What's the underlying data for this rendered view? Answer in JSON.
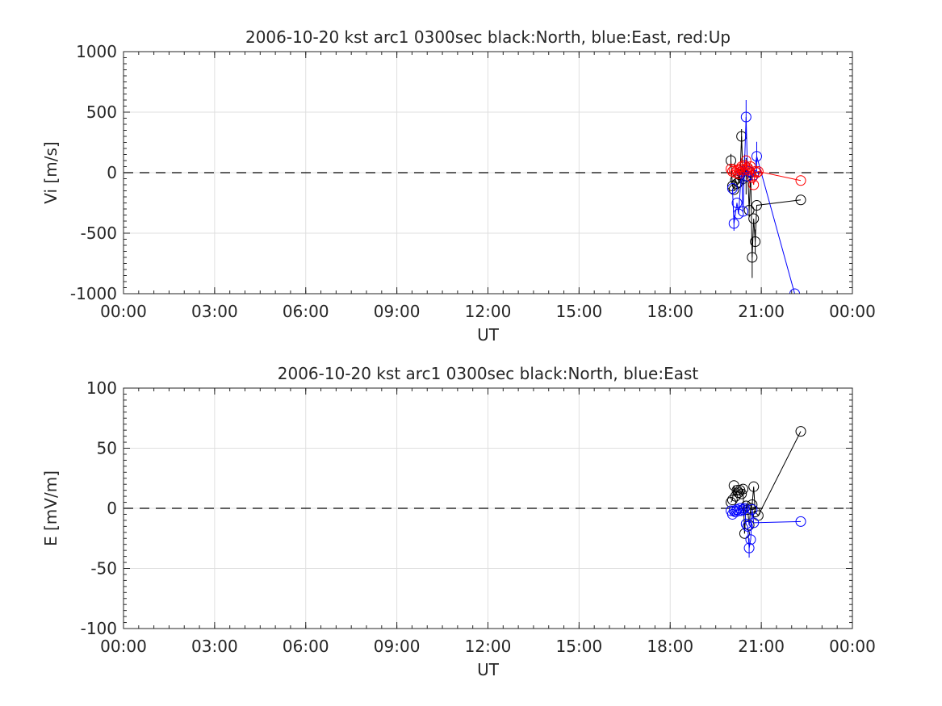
{
  "chart_data": [
    {
      "type": "line",
      "title": "2006-10-20 kst arc1 0300sec black:North, blue:East, red:Up",
      "xlabel": "UT",
      "ylabel": "Vi [m/s]",
      "xlim_hours": [
        0,
        24
      ],
      "ylim": [
        -1000,
        1000
      ],
      "x_tick_labels": [
        "00:00",
        "03:00",
        "06:00",
        "09:00",
        "12:00",
        "15:00",
        "18:00",
        "21:00",
        "00:00"
      ],
      "y_ticks": [
        -1000,
        -500,
        0,
        500,
        1000
      ],
      "grid": true,
      "zero_line": "dashed",
      "series": [
        {
          "name": "North",
          "color": "#000000",
          "points": [
            {
              "t": "20:00",
              "v": 100,
              "err": 55
            },
            {
              "t": "20:03",
              "v": -110
            },
            {
              "t": "20:06",
              "v": -140
            },
            {
              "t": "20:09",
              "v": -60
            },
            {
              "t": "20:12",
              "v": -90
            },
            {
              "t": "20:15",
              "v": -80
            },
            {
              "t": "20:18",
              "v": -20
            },
            {
              "t": "20:21",
              "v": 300,
              "err": 60
            },
            {
              "t": "20:24",
              "v": -50
            },
            {
              "t": "20:27",
              "v": 60,
              "err": 90
            },
            {
              "t": "20:30",
              "v": -30,
              "err": 150
            },
            {
              "t": "20:33",
              "v": 40
            },
            {
              "t": "20:36",
              "v": -310,
              "err": 60
            },
            {
              "t": "20:39",
              "v": 0
            },
            {
              "t": "20:42",
              "v": -700,
              "err": 170
            },
            {
              "t": "20:45",
              "v": -380
            },
            {
              "t": "20:48",
              "v": -570,
              "err": 100
            },
            {
              "t": "20:51",
              "v": -270
            },
            {
              "t": "22:18",
              "v": -225
            }
          ]
        },
        {
          "name": "East",
          "color": "#0000ff",
          "points": [
            {
              "t": "20:03",
              "v": -130
            },
            {
              "t": "20:06",
              "v": -420,
              "err": 60
            },
            {
              "t": "20:12",
              "v": -250
            },
            {
              "t": "20:15",
              "v": -340
            },
            {
              "t": "20:21",
              "v": 10
            },
            {
              "t": "20:24",
              "v": -320
            },
            {
              "t": "20:30",
              "v": 460,
              "err": 140
            },
            {
              "t": "20:33",
              "v": -30
            },
            {
              "t": "20:36",
              "v": 10
            },
            {
              "t": "20:42",
              "v": -40
            },
            {
              "t": "20:45",
              "v": -20
            },
            {
              "t": "20:51",
              "v": 135,
              "err": 120
            },
            {
              "t": "22:06",
              "v": -1000
            }
          ]
        },
        {
          "name": "Up",
          "color": "#ff0000",
          "points": [
            {
              "t": "20:00",
              "v": 30
            },
            {
              "t": "20:03",
              "v": 10
            },
            {
              "t": "20:06",
              "v": 25
            },
            {
              "t": "20:09",
              "v": 0
            },
            {
              "t": "20:12",
              "v": 20
            },
            {
              "t": "20:15",
              "v": -10
            },
            {
              "t": "20:18",
              "v": 30
            },
            {
              "t": "20:21",
              "v": 50
            },
            {
              "t": "20:24",
              "v": 20
            },
            {
              "t": "20:27",
              "v": 60
            },
            {
              "t": "20:30",
              "v": 100
            },
            {
              "t": "20:33",
              "v": 40
            },
            {
              "t": "20:36",
              "v": 20
            },
            {
              "t": "20:39",
              "v": 50
            },
            {
              "t": "20:42",
              "v": -40
            },
            {
              "t": "20:45",
              "v": -100
            },
            {
              "t": "20:48",
              "v": 10
            },
            {
              "t": "20:51",
              "v": 0
            },
            {
              "t": "20:54",
              "v": 10
            },
            {
              "t": "22:18",
              "v": -65
            }
          ]
        }
      ]
    },
    {
      "type": "line",
      "title": "2006-10-20 kst arc1 0300sec black:North, blue:East",
      "xlabel": "UT",
      "ylabel": "E [mV/m]",
      "xlim_hours": [
        0,
        24
      ],
      "ylim": [
        -100,
        100
      ],
      "x_tick_labels": [
        "00:00",
        "03:00",
        "06:00",
        "09:00",
        "12:00",
        "15:00",
        "18:00",
        "21:00",
        "00:00"
      ],
      "y_ticks": [
        -100,
        -50,
        0,
        50,
        100
      ],
      "grid": true,
      "zero_line": "dashed",
      "series": [
        {
          "name": "North",
          "color": "#000000",
          "points": [
            {
              "t": "20:00",
              "v": 5
            },
            {
              "t": "20:03",
              "v": 7
            },
            {
              "t": "20:06",
              "v": 19
            },
            {
              "t": "20:09",
              "v": 10
            },
            {
              "t": "20:12",
              "v": 15
            },
            {
              "t": "20:15",
              "v": 13
            },
            {
              "t": "20:18",
              "v": 15
            },
            {
              "t": "20:21",
              "v": 12
            },
            {
              "t": "20:24",
              "v": 16
            },
            {
              "t": "20:27",
              "v": -21
            },
            {
              "t": "20:30",
              "v": 2
            },
            {
              "t": "20:33",
              "v": -1
            },
            {
              "t": "20:36",
              "v": -14
            },
            {
              "t": "20:39",
              "v": 0
            },
            {
              "t": "20:42",
              "v": 3
            },
            {
              "t": "20:45",
              "v": 18
            },
            {
              "t": "20:48",
              "v": -3
            },
            {
              "t": "20:54",
              "v": -6
            },
            {
              "t": "22:18",
              "v": 64
            }
          ]
        },
        {
          "name": "East",
          "color": "#0000ff",
          "points": [
            {
              "t": "20:00",
              "v": -2
            },
            {
              "t": "20:03",
              "v": -5
            },
            {
              "t": "20:06",
              "v": -2
            },
            {
              "t": "20:09",
              "v": -3
            },
            {
              "t": "20:12",
              "v": -1
            },
            {
              "t": "20:15",
              "v": -2
            },
            {
              "t": "20:18",
              "v": 0
            },
            {
              "t": "20:21",
              "v": -2
            },
            {
              "t": "20:24",
              "v": -1
            },
            {
              "t": "20:27",
              "v": 0
            },
            {
              "t": "20:30",
              "v": -13
            },
            {
              "t": "20:33",
              "v": -15
            },
            {
              "t": "20:36",
              "v": -33,
              "err": 8
            },
            {
              "t": "20:39",
              "v": -26
            },
            {
              "t": "20:42",
              "v": -1
            },
            {
              "t": "20:45",
              "v": -12
            },
            {
              "t": "22:18",
              "v": -11
            }
          ]
        }
      ]
    }
  ]
}
